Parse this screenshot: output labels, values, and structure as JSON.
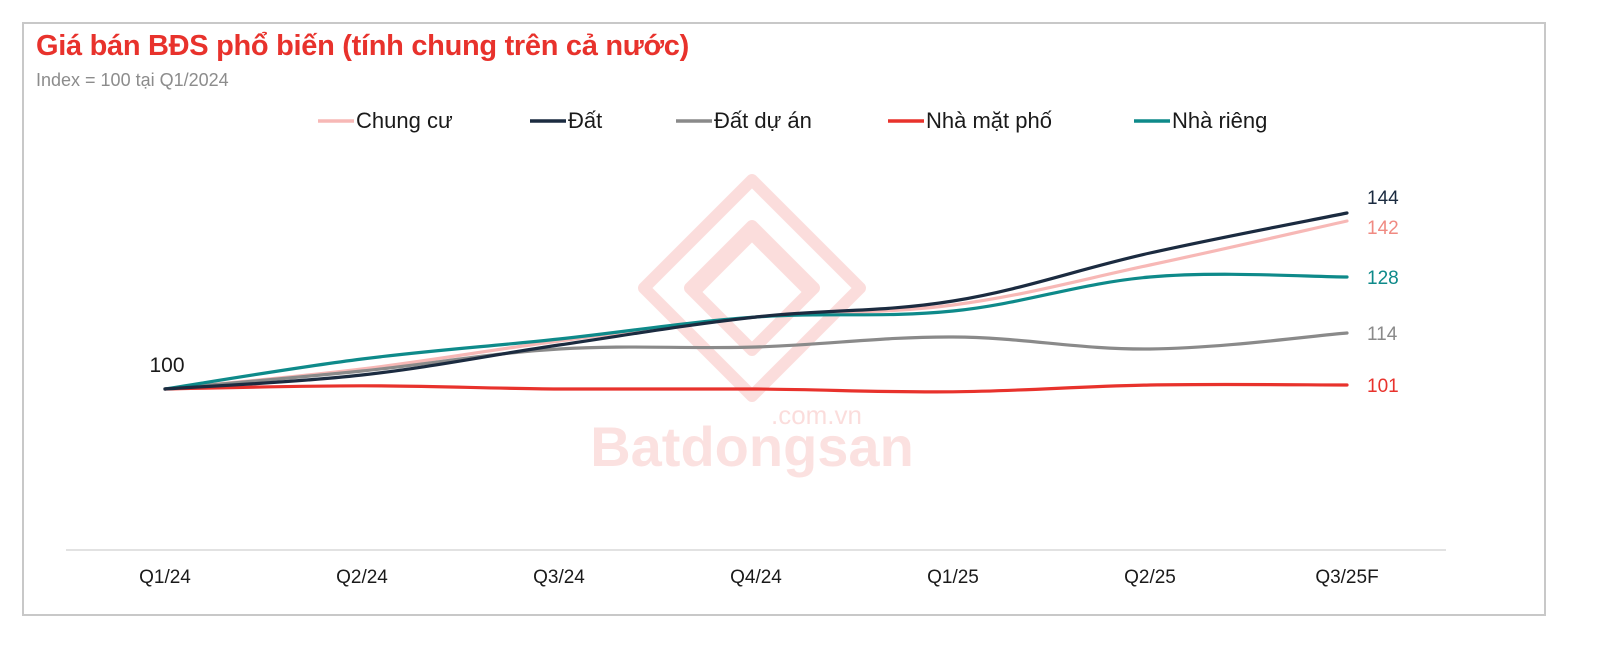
{
  "chart_data": {
    "type": "line",
    "title": "Giá bán BĐS phổ biến (tính chung trên cả nước)",
    "subtitle": "Index = 100 tại Q1/2024",
    "categories": [
      "Q1/24",
      "Q2/24",
      "Q3/24",
      "Q4/24",
      "Q1/25",
      "Q2/25",
      "Q3/25F"
    ],
    "start_label": "100",
    "ylim": [
      90,
      150
    ],
    "grid": false,
    "legend_position": "top",
    "series": [
      {
        "name": "Chung cư",
        "color": "#f7b8b6",
        "label_color": "#f08a82",
        "values": [
          100,
          105,
          112,
          118,
          121,
          131,
          142
        ],
        "end_label": "142"
      },
      {
        "name": "Đất",
        "color": "#1b2b40",
        "label_color": "#1b2b40",
        "values": [
          100,
          103.5,
          111,
          118,
          122,
          134,
          144
        ],
        "end_label": "144"
      },
      {
        "name": "Đất dự án",
        "color": "#8a8a8a",
        "label_color": "#8a8a8a",
        "values": [
          100,
          104.5,
          110,
          110.5,
          113,
          110,
          114
        ],
        "end_label": "114"
      },
      {
        "name": "Nhà mặt phố",
        "color": "#e8322c",
        "label_color": "#e8322c",
        "values": [
          100,
          100.8,
          100,
          100,
          99.3,
          101,
          101
        ],
        "end_label": "101"
      },
      {
        "name": "Nhà riêng",
        "color": "#0e8a8a",
        "label_color": "#0e8a8a",
        "values": [
          100,
          107.5,
          112.5,
          118,
          119.5,
          128,
          128
        ],
        "end_label": "128"
      }
    ]
  },
  "watermark": {
    "brand": "Batdongsan",
    "suffix": ".com.vn"
  }
}
